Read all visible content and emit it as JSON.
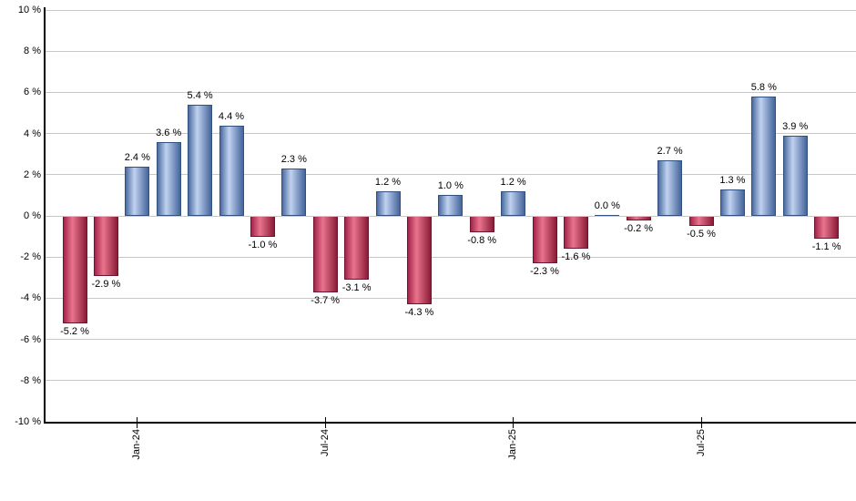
{
  "chart_data": {
    "type": "bar",
    "title": "",
    "xlabel": "",
    "ylabel": "",
    "unit": "%",
    "ylim": [
      -10,
      10
    ],
    "y_tick_step": 2,
    "grid": true,
    "legend": false,
    "y_tick_labels": [
      "10 %",
      "8 %",
      "6 %",
      "4 %",
      "2 %",
      "0 %",
      "-2 %",
      "-4 %",
      "-6 %",
      "-8 %",
      "-10 %"
    ],
    "x_tick_labels": [
      {
        "label": "Jan-24",
        "bar_index": 2
      },
      {
        "label": "Jul-24",
        "bar_index": 8
      },
      {
        "label": "Jan-25",
        "bar_index": 14
      },
      {
        "label": "Jul-25",
        "bar_index": 20
      }
    ],
    "values": [
      -5.2,
      -2.9,
      2.4,
      3.6,
      5.4,
      4.4,
      -1.0,
      2.3,
      -3.7,
      -3.1,
      1.2,
      -4.3,
      1.0,
      -0.8,
      1.2,
      -2.3,
      -1.6,
      0.0,
      -0.2,
      2.7,
      -0.5,
      1.3,
      5.8,
      3.9,
      -1.1
    ],
    "bar_labels": [
      "-5.2 %",
      "-2.9 %",
      "2.4 %",
      "3.6 %",
      "5.4 %",
      "4.4 %",
      "-1.0 %",
      "2.3 %",
      "-3.7 %",
      "-3.1 %",
      "1.2 %",
      "-4.3 %",
      "1.0 %",
      "-0.8 %",
      "1.2 %",
      "-2.3 %",
      "-1.6 %",
      "0.0 %",
      "-0.2 %",
      "2.7 %",
      "-0.5 %",
      "1.3 %",
      "5.8 %",
      "3.9 %",
      "-1.1 %"
    ],
    "colors": {
      "positive_gradient": [
        "#4a6ba1",
        "#c0d2ef",
        "#44649b"
      ],
      "positive_border": "#31517f",
      "negative_gradient": [
        "#a3244a",
        "#e9748d",
        "#8a1b37"
      ],
      "negative_border": "#6e1630",
      "gridline": "#c8c8c8",
      "axis": "#000000",
      "label_text": "#000000",
      "background": "#ffffff"
    }
  }
}
